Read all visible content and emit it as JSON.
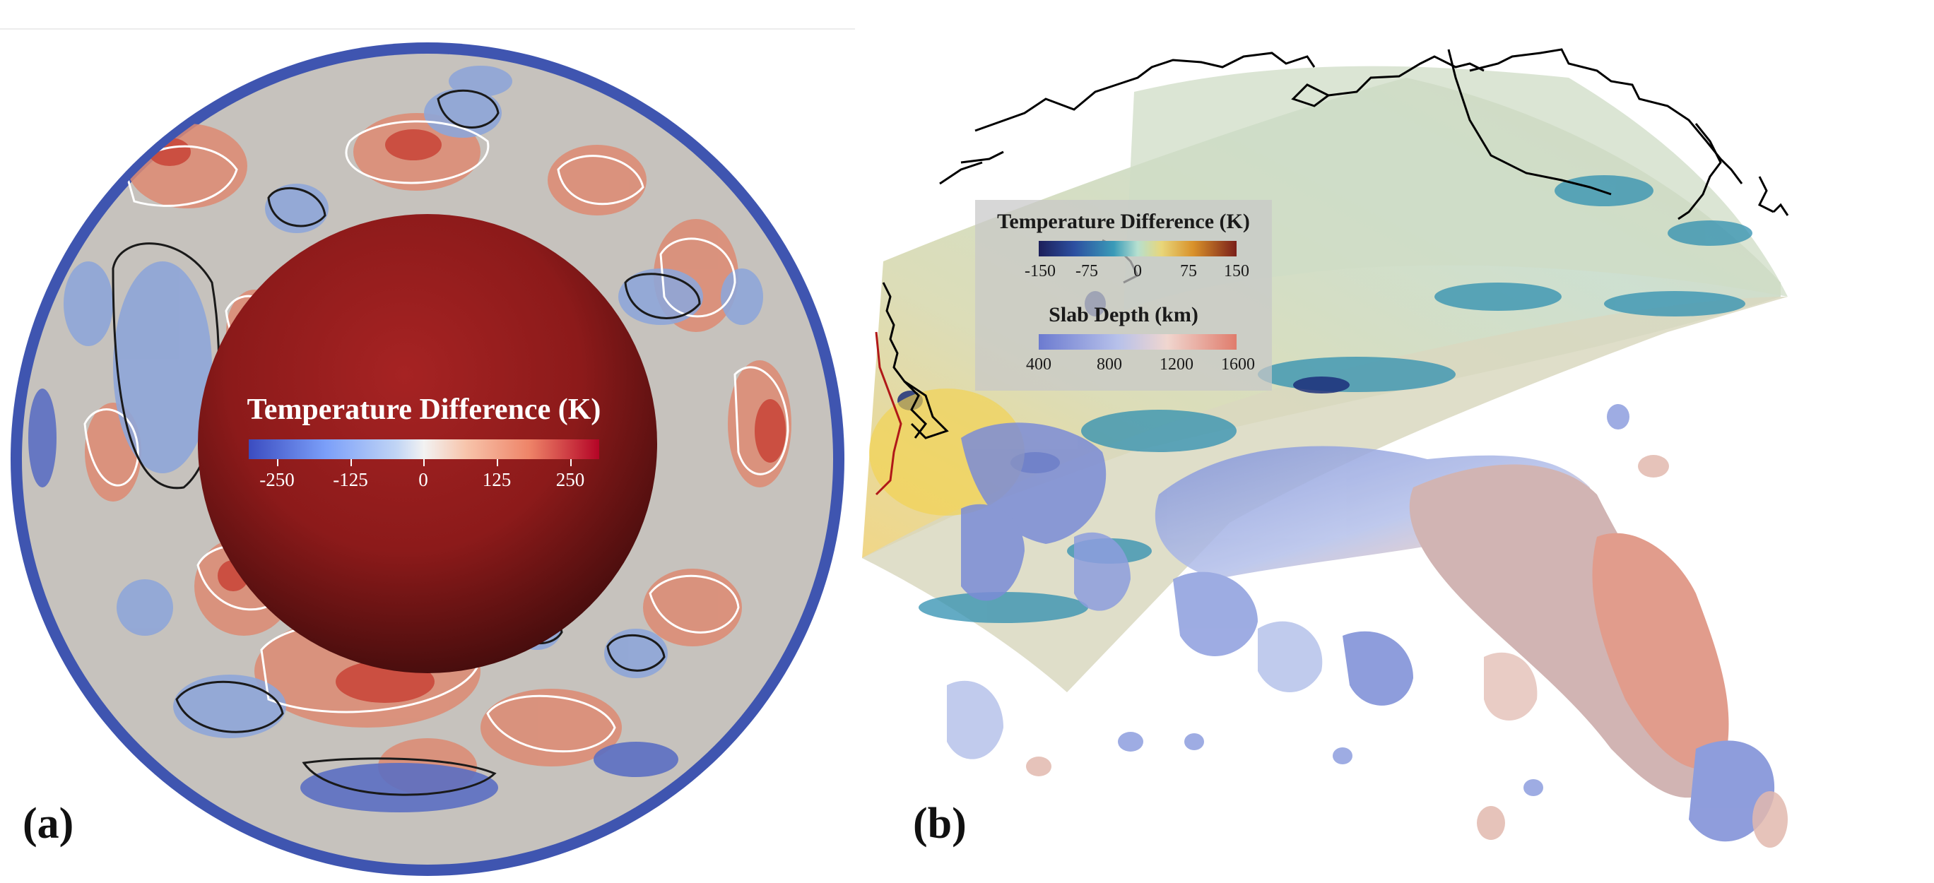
{
  "panel_a": {
    "label": "(a)",
    "legend": {
      "title": "Temperature Difference (K)",
      "ticks": [
        "-250",
        "-125",
        "0",
        "125",
        "250"
      ]
    }
  },
  "panel_b": {
    "label": "(b)",
    "temperature_legend": {
      "title": "Temperature Difference (K)",
      "ticks": [
        "-150",
        "-75",
        "0",
        "75",
        "150"
      ]
    },
    "slab_legend": {
      "title": "Slab Depth (km)",
      "ticks": [
        "400",
        "800",
        "1200",
        "1600"
      ]
    }
  },
  "colors": {
    "mantle_shell_blue": "#3f55b0",
    "mantle_neutral": "#c6c2bd",
    "mantle_warm": "#d9735a",
    "mantle_cool": "#8ea6d8",
    "core_red": "#8f1a1a",
    "contour_black": "#1a1a1a",
    "contour_white": "#ffffff",
    "slab_blue": "#7f93d8",
    "slab_red": "#d88a7a",
    "coastline": "#000000",
    "plate_boundary": "#b01818"
  }
}
